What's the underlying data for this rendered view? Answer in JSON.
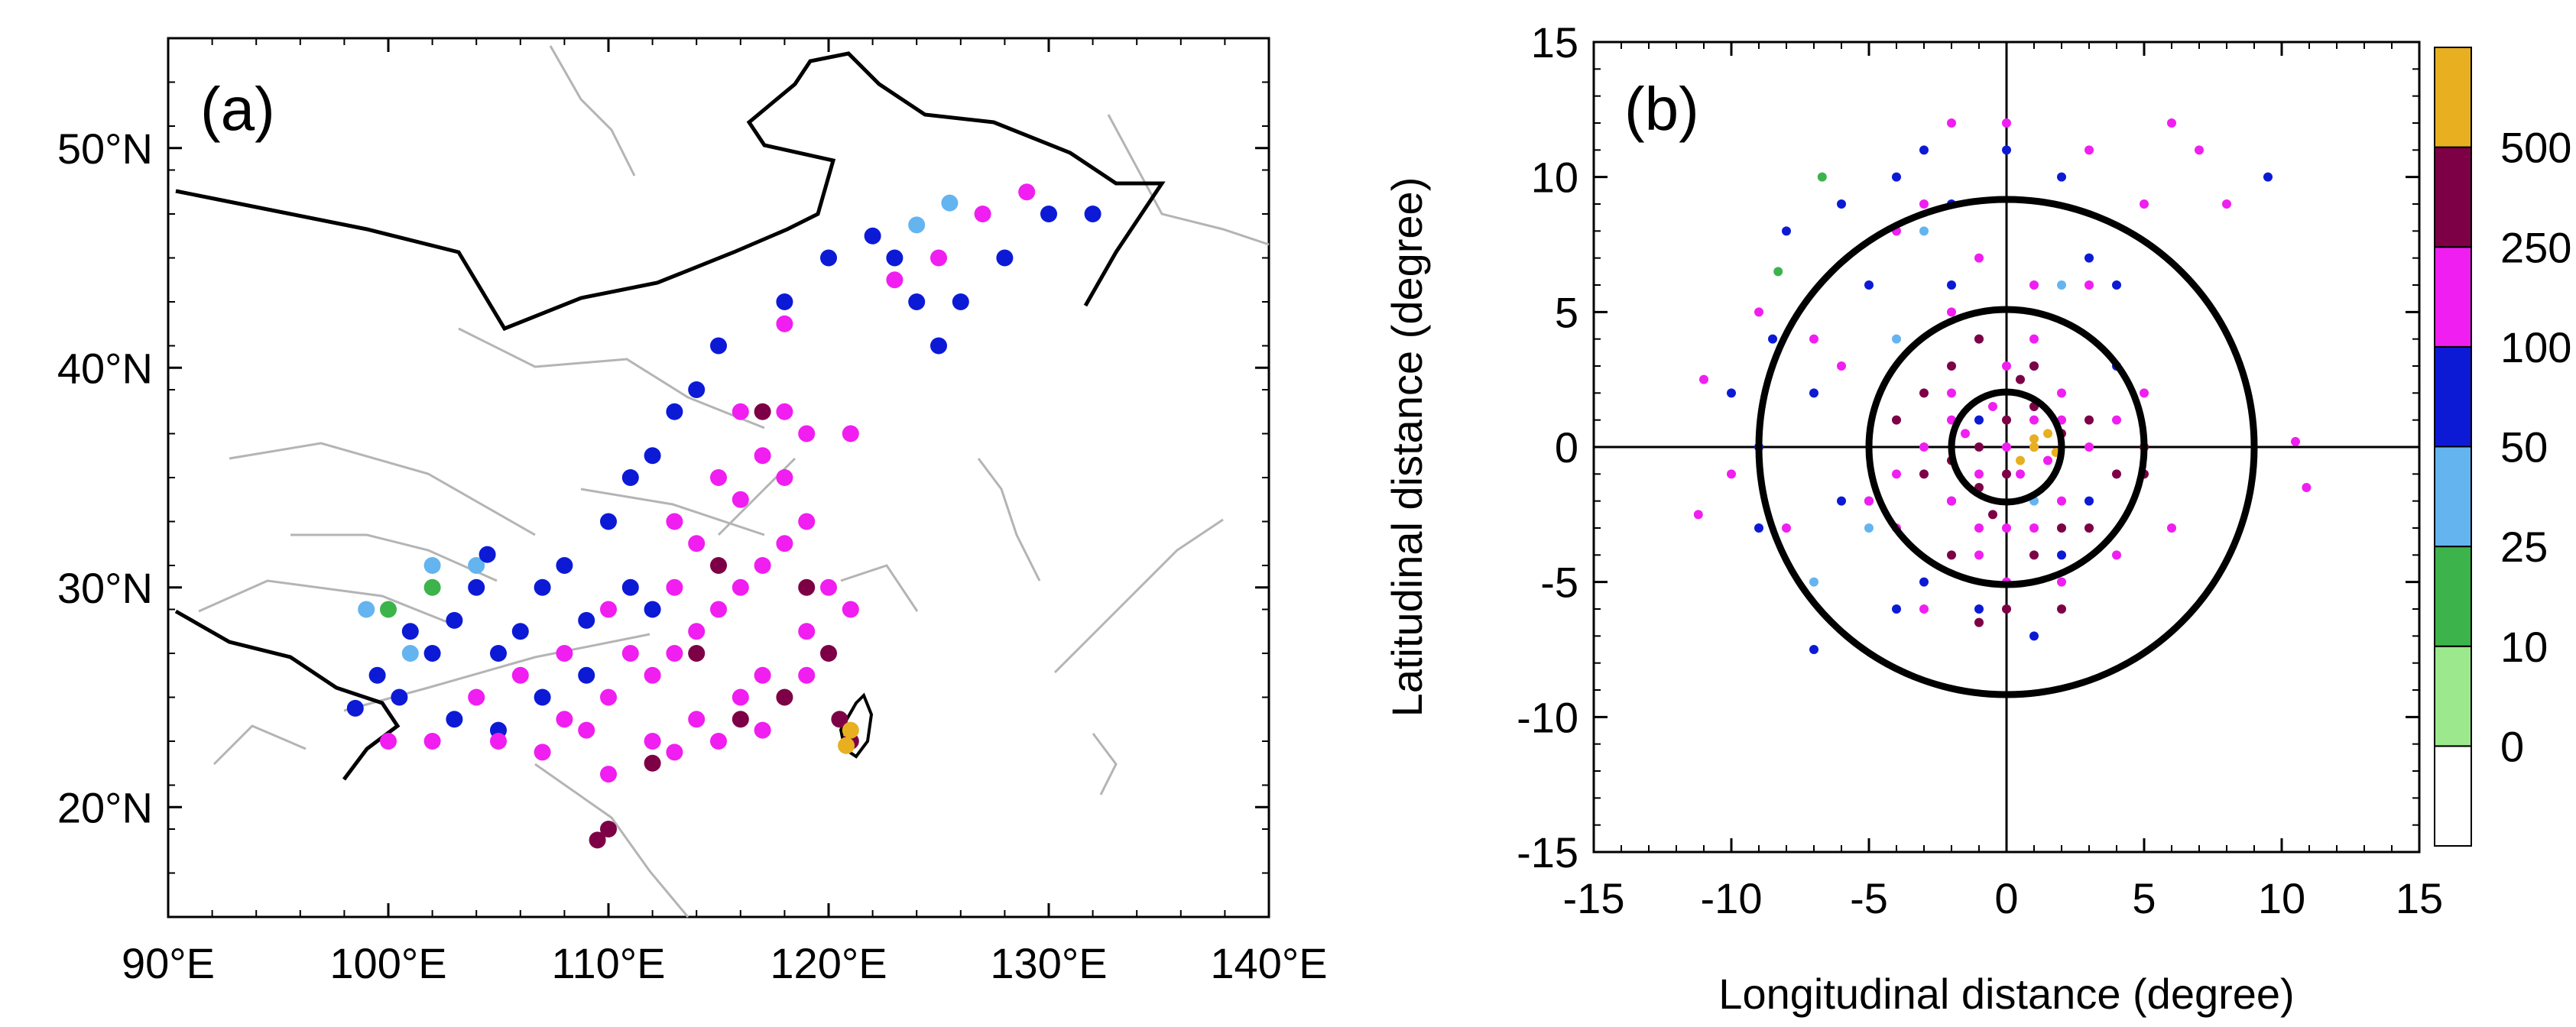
{
  "figure": {
    "panels": [
      {
        "id": "a",
        "label": "(a)",
        "type": "map",
        "xlim": [
          90,
          140
        ],
        "ylim": [
          15,
          55
        ],
        "x_ticks": [
          90,
          100,
          110,
          120,
          130,
          140
        ],
        "y_ticks": [
          20,
          30,
          40,
          50
        ],
        "x_tick_labels": [
          "90°E",
          "100°E",
          "110°E",
          "120°E",
          "130°E",
          "140°E"
        ],
        "y_tick_labels": [
          "20°N",
          "30°N",
          "40°N",
          "50°N"
        ]
      },
      {
        "id": "b",
        "label": "(b)",
        "type": "scatter",
        "xlabel": "Longitudinal distance (degree)",
        "ylabel": "Latitudinal distance (degree)",
        "xlim": [
          -15,
          15
        ],
        "ylim": [
          -15,
          15
        ],
        "x_ticks": [
          -15,
          -10,
          -5,
          0,
          5,
          10,
          15
        ],
        "y_ticks": [
          -15,
          -10,
          -5,
          0,
          5,
          10,
          15
        ],
        "x_tick_labels": [
          "-15",
          "-10",
          "-5",
          "0",
          "5",
          "10",
          "15"
        ],
        "y_tick_labels": [
          "-15",
          "-10",
          "-5",
          "0",
          "5",
          "10",
          "15"
        ],
        "circles_radius": [
          2,
          5,
          9
        ]
      }
    ],
    "colorbar": {
      "labels": [
        "0",
        "10",
        "25",
        "50",
        "100",
        "250",
        "500"
      ],
      "colors": [
        "#ffffff",
        "#9be88d",
        "#3cb44b",
        "#64b4f0",
        "#0c1ad6",
        "#f01ef0",
        "#7d0046",
        "#e8b020"
      ]
    }
  },
  "chart_data": [
    {
      "type": "scatter",
      "title": "(a)",
      "xlabel": "",
      "ylabel": "",
      "xlim": [
        90,
        140
      ],
      "ylim": [
        15,
        55
      ],
      "series": [
        {
          "name": "25-50",
          "color": "#64b4f0",
          "points": [
            [
              99,
              29
            ],
            [
              101,
              27
            ],
            [
              124,
              46.5
            ],
            [
              125.5,
              47.5
            ],
            [
              102,
              31
            ],
            [
              104,
              31
            ]
          ]
        },
        {
          "name": "10-25",
          "color": "#3cb44b",
          "points": [
            [
              102,
              30
            ],
            [
              100,
              29
            ]
          ]
        },
        {
          "name": "50-100",
          "color": "#0c1ad6",
          "points": [
            [
              98.5,
              24.5
            ],
            [
              99.5,
              26
            ],
            [
              100.5,
              25
            ],
            [
              101,
              28
            ],
            [
              102,
              27
            ],
            [
              103,
              28.5
            ],
            [
              104,
              30
            ],
            [
              104.5,
              31.5
            ],
            [
              105,
              27
            ],
            [
              106,
              28
            ],
            [
              107,
              30
            ],
            [
              108,
              31
            ],
            [
              109,
              26
            ],
            [
              110,
              33
            ],
            [
              111,
              35
            ],
            [
              112,
              36
            ],
            [
              113,
              38
            ],
            [
              114,
              39
            ],
            [
              115,
              41
            ],
            [
              118,
              43
            ],
            [
              120,
              45
            ],
            [
              122,
              46
            ],
            [
              123,
              45
            ],
            [
              124,
              43
            ],
            [
              125,
              41
            ],
            [
              126,
              43
            ],
            [
              128,
              45
            ],
            [
              130,
              47
            ],
            [
              132,
              47
            ],
            [
              111,
              30
            ],
            [
              109,
              28.5
            ],
            [
              107,
              25
            ],
            [
              105,
              23.5
            ],
            [
              103,
              24
            ],
            [
              112,
              29
            ]
          ]
        },
        {
          "name": "100-250",
          "color": "#f01ef0",
          "points": [
            [
              112,
              26
            ],
            [
              113,
              27
            ],
            [
              114,
              28
            ],
            [
              115,
              29
            ],
            [
              116,
              30
            ],
            [
              117,
              31
            ],
            [
              118,
              32
            ],
            [
              119,
              33
            ],
            [
              118,
              35
            ],
            [
              116,
              34
            ],
            [
              114,
              32
            ],
            [
              113,
              30
            ],
            [
              111,
              27
            ],
            [
              110,
              25
            ],
            [
              109,
              23.5
            ],
            [
              108,
              24
            ],
            [
              112,
              23
            ],
            [
              114,
              24
            ],
            [
              116,
              25
            ],
            [
              117,
              26
            ],
            [
              119,
              28
            ],
            [
              120,
              30
            ],
            [
              121,
              29
            ],
            [
              119,
              26
            ],
            [
              117,
              23.5
            ],
            [
              115,
              23
            ],
            [
              113,
              22.5
            ],
            [
              110,
              21.5
            ],
            [
              107,
              22.5
            ],
            [
              105,
              23
            ],
            [
              117,
              36
            ],
            [
              118,
              38
            ],
            [
              116,
              38
            ],
            [
              119,
              37
            ],
            [
              121,
              37
            ],
            [
              118,
              42
            ],
            [
              123,
              44
            ],
            [
              125,
              45
            ],
            [
              127,
              47
            ],
            [
              129,
              48
            ],
            [
              113,
              33
            ],
            [
              115,
              35
            ],
            [
              110,
              29
            ],
            [
              108,
              27
            ],
            [
              106,
              26
            ],
            [
              104,
              25
            ],
            [
              102,
              23
            ],
            [
              100,
              23
            ]
          ]
        },
        {
          "name": "250-500",
          "color": "#7d0046",
          "points": [
            [
              117,
              38
            ],
            [
              119,
              30
            ],
            [
              114,
              27
            ],
            [
              116,
              24
            ],
            [
              120,
              27
            ],
            [
              110,
              19
            ],
            [
              109.5,
              18.5
            ],
            [
              112,
              22
            ],
            [
              118,
              25
            ],
            [
              115,
              31
            ],
            [
              121,
              23
            ],
            [
              120.5,
              24
            ]
          ]
        },
        {
          "name": ">500",
          "color": "#e8b020",
          "points": [
            [
              121,
              23.5
            ],
            [
              120.8,
              22.8
            ]
          ]
        }
      ]
    },
    {
      "type": "scatter",
      "title": "(b)",
      "xlabel": "Longitudinal distance (degree)",
      "ylabel": "Latitudinal distance (degree)",
      "xlim": [
        -15,
        15
      ],
      "ylim": [
        -15,
        15
      ],
      "series": [
        {
          "name": "10-25",
          "color": "#3cb44b",
          "points": [
            [
              -6.7,
              10
            ],
            [
              -8.3,
              6.5
            ]
          ]
        },
        {
          "name": "25-50",
          "color": "#64b4f0",
          "points": [
            [
              -5,
              -3
            ],
            [
              -4,
              4
            ],
            [
              1,
              -2
            ],
            [
              -7,
              -5
            ],
            [
              -3,
              8
            ],
            [
              -1,
              4
            ],
            [
              2,
              6
            ]
          ]
        },
        {
          "name": "50-100",
          "color": "#0c1ad6",
          "points": [
            [
              -8.5,
              4
            ],
            [
              -9,
              0
            ],
            [
              -10,
              2
            ],
            [
              -7,
              -7.5
            ],
            [
              -6,
              -2
            ],
            [
              -5,
              6
            ],
            [
              -4,
              10
            ],
            [
              -3,
              11
            ],
            [
              -2,
              9
            ],
            [
              0,
              11
            ],
            [
              2,
              10
            ],
            [
              3,
              7
            ],
            [
              4,
              6
            ],
            [
              4,
              3
            ],
            [
              3,
              -2
            ],
            [
              2,
              -4
            ],
            [
              -1,
              -6
            ],
            [
              -3,
              -5
            ],
            [
              -8,
              8
            ],
            [
              -6,
              9
            ],
            [
              -2,
              -2
            ],
            [
              -1,
              1
            ],
            [
              1,
              3
            ],
            [
              9.5,
              10
            ],
            [
              -5,
              -2
            ],
            [
              -7,
              2
            ],
            [
              -4,
              -6
            ],
            [
              1,
              -7
            ],
            [
              -9,
              -3
            ],
            [
              -2,
              6
            ]
          ]
        },
        {
          "name": "100-250",
          "color": "#f01ef0",
          "points": [
            [
              0,
              0
            ],
            [
              1,
              1
            ],
            [
              -1,
              -1
            ],
            [
              0.5,
              -1
            ],
            [
              -0.5,
              1.5
            ],
            [
              1.5,
              -0.5
            ],
            [
              -1.5,
              0.5
            ],
            [
              2,
              2
            ],
            [
              -2,
              -2
            ],
            [
              2,
              -2
            ],
            [
              -2,
              2
            ],
            [
              0,
              3
            ],
            [
              0,
              -3
            ],
            [
              3,
              0
            ],
            [
              -3,
              0
            ],
            [
              1,
              4
            ],
            [
              -1,
              -4
            ],
            [
              4,
              1
            ],
            [
              -4,
              -1
            ],
            [
              2,
              -5
            ],
            [
              -2,
              5
            ],
            [
              5,
              2
            ],
            [
              -5,
              -2
            ],
            [
              -3,
              -6
            ],
            [
              3,
              6
            ],
            [
              6,
              -3
            ],
            [
              -6,
              3
            ],
            [
              -3,
              9
            ],
            [
              0,
              12
            ],
            [
              -2,
              12
            ],
            [
              3,
              11
            ],
            [
              6,
              12
            ],
            [
              5,
              9
            ],
            [
              7,
              11
            ],
            [
              8,
              9
            ],
            [
              10.5,
              0.2
            ],
            [
              10.9,
              -1.5
            ],
            [
              -11,
              2.5
            ],
            [
              -11.2,
              -2.5
            ],
            [
              -9,
              5
            ],
            [
              -10,
              -1
            ],
            [
              -8,
              -3
            ],
            [
              -7,
              4
            ],
            [
              -4,
              8
            ],
            [
              -1,
              7
            ],
            [
              1,
              6
            ],
            [
              4,
              -4
            ],
            [
              -4,
              -3
            ],
            [
              0,
              -5
            ],
            [
              -1,
              -3
            ],
            [
              1,
              -3
            ],
            [
              2,
              1
            ],
            [
              -2,
              1
            ]
          ]
        },
        {
          "name": "250-500",
          "color": "#7d0046",
          "points": [
            [
              0,
              1
            ],
            [
              1,
              0
            ],
            [
              -1,
              0
            ],
            [
              0,
              -1
            ],
            [
              1,
              1.5
            ],
            [
              -1,
              -1.5
            ],
            [
              2,
              0.5
            ],
            [
              -2,
              -0.5
            ],
            [
              0.5,
              2.5
            ],
            [
              -0.5,
              -2.5
            ],
            [
              3,
              1
            ],
            [
              -3,
              -1
            ],
            [
              2,
              -3
            ],
            [
              -2,
              3
            ],
            [
              4,
              -1
            ],
            [
              -4,
              1
            ],
            [
              1,
              -4
            ],
            [
              -1,
              4
            ],
            [
              5,
              0
            ],
            [
              5,
              -1
            ],
            [
              0,
              -6
            ],
            [
              -1,
              -6.5
            ],
            [
              2,
              -6
            ],
            [
              1,
              3
            ],
            [
              -3,
              2
            ],
            [
              3,
              -3
            ],
            [
              -2,
              -4
            ]
          ]
        },
        {
          "name": ">500",
          "color": "#e8b020",
          "points": [
            [
              1,
              0
            ],
            [
              1.5,
              0.5
            ],
            [
              0.5,
              -0.5
            ],
            [
              1,
              0.3
            ],
            [
              1.8,
              -0.2
            ]
          ]
        }
      ]
    }
  ]
}
